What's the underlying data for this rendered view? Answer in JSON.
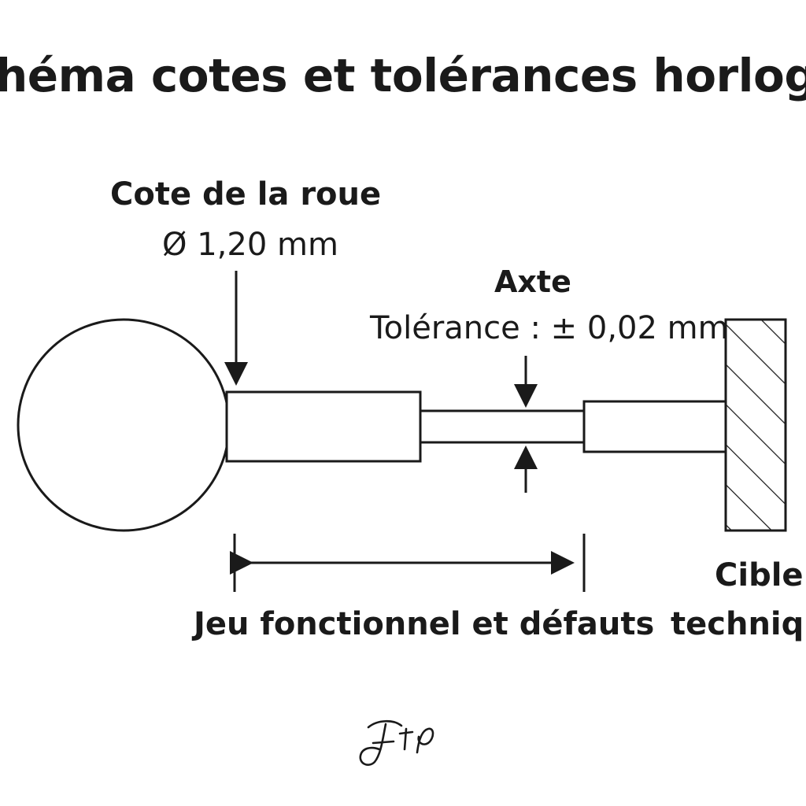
{
  "diagram": {
    "title": "héma cotes et tolérances horlogère",
    "wheel": {
      "label": "Cote de la roue",
      "dimension": "Ø 1,20 mm"
    },
    "axle": {
      "label": "Axte",
      "tolerance": "Tolérance : ± 0,02 mm"
    },
    "clearance": {
      "label": "Jeu fonctionnel et défauts"
    },
    "target": {
      "line1": "Cible",
      "line2": "techniqu"
    },
    "signature": "FtP"
  },
  "colors": {
    "ink": "#1a1a1a",
    "background": "#ffffff"
  }
}
